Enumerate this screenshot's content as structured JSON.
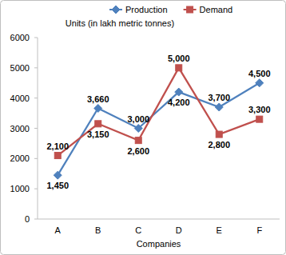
{
  "chart_data": {
    "type": "line",
    "ylabel": "Units (in lakh metric tonnes)",
    "xlabel": "Companies",
    "categories": [
      "A",
      "B",
      "C",
      "D",
      "E",
      "F"
    ],
    "series": [
      {
        "name": "Production",
        "color": "#4f81bd",
        "marker": "diamond",
        "values": [
          1450,
          3660,
          3000,
          4200,
          3700,
          4500
        ],
        "value_labels": [
          "1,450",
          "3,660",
          "3,000",
          "4,200",
          "3,700",
          "4,500"
        ]
      },
      {
        "name": "Demand",
        "color": "#c0504d",
        "marker": "square",
        "values": [
          2100,
          3150,
          2600,
          5000,
          2800,
          3300
        ],
        "value_labels": [
          "2,100",
          "3,150",
          "2,600",
          "5,000",
          "2,800",
          "3,300"
        ]
      }
    ],
    "ylim": [
      0,
      6000
    ],
    "yticks": [
      0,
      1000,
      2000,
      3000,
      4000,
      5000,
      6000
    ],
    "grid": false,
    "legend": "top",
    "data_labels": true
  }
}
